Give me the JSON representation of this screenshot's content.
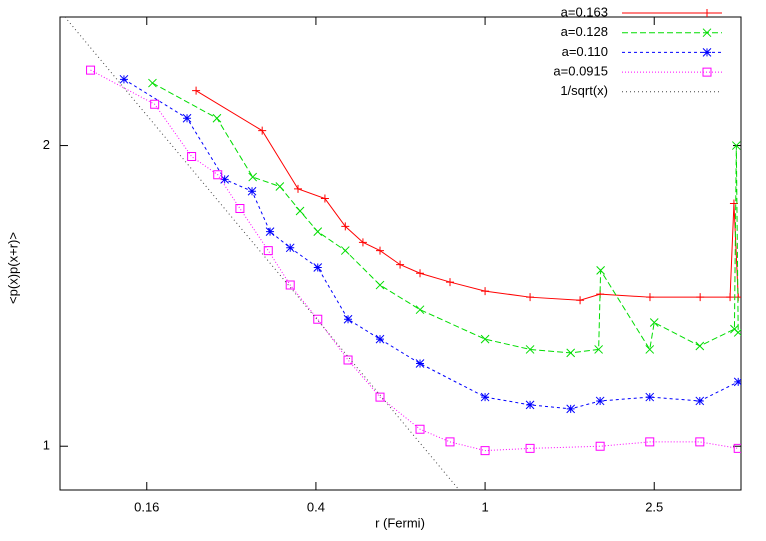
{
  "chart_data": {
    "type": "line",
    "x_label": "r (Fermi)",
    "y_label": "<p(x)p(x+r)>",
    "xlog": true,
    "ylog": true,
    "xlim": [
      0.1,
      4
    ],
    "ylim": [
      0.904,
      2.69
    ],
    "xticks": [
      0.16,
      0.4,
      1,
      2.5
    ],
    "yticks": [
      1,
      2
    ],
    "grid": false,
    "legend": "top-right",
    "series": [
      {
        "name": "a=0.163",
        "color": "#ff0000",
        "marker": "plus",
        "dash": "none",
        "x": [
          0.209,
          0.299,
          0.363,
          0.42,
          0.469,
          0.516,
          0.566,
          0.631,
          0.703,
          0.827,
          1.0,
          1.276,
          1.673,
          1.865,
          2.443,
          3.206,
          3.77,
          3.85,
          3.94
        ],
        "values": [
          2.27,
          2.07,
          1.81,
          1.77,
          1.66,
          1.6,
          1.57,
          1.52,
          1.49,
          1.46,
          1.43,
          1.41,
          1.4,
          1.42,
          1.41,
          1.41,
          1.41,
          1.75,
          1.41
        ]
      },
      {
        "name": "a=0.128",
        "color": "#00dd00",
        "marker": "cross",
        "dash": "6,3",
        "x": [
          0.165,
          0.234,
          0.284,
          0.329,
          0.367,
          0.404,
          0.469,
          0.566,
          0.703,
          1.0,
          1.276,
          1.59,
          1.85,
          1.87,
          2.44,
          2.5,
          3.2,
          3.86,
          3.9,
          3.94
        ],
        "values": [
          2.31,
          2.13,
          1.86,
          1.82,
          1.72,
          1.64,
          1.57,
          1.45,
          1.37,
          1.28,
          1.25,
          1.24,
          1.25,
          1.5,
          1.25,
          1.33,
          1.26,
          1.31,
          2.0,
          1.3
        ]
      },
      {
        "name": "a=0.110",
        "color": "#0000ff",
        "marker": "star",
        "dash": "3,3",
        "x": [
          0.1414,
          0.199,
          0.244,
          0.283,
          0.312,
          0.348,
          0.404,
          0.476,
          0.566,
          0.703,
          1.0,
          1.276,
          1.59,
          1.865,
          2.44,
          3.2,
          3.94
        ],
        "values": [
          2.33,
          2.13,
          1.85,
          1.8,
          1.64,
          1.58,
          1.51,
          1.34,
          1.28,
          1.21,
          1.12,
          1.1,
          1.09,
          1.11,
          1.12,
          1.11,
          1.16
        ]
      },
      {
        "name": "a=0.0915",
        "color": "#ff00ff",
        "marker": "square",
        "dash": "1,2",
        "x": [
          0.118,
          0.167,
          0.204,
          0.235,
          0.265,
          0.309,
          0.348,
          0.404,
          0.476,
          0.566,
          0.703,
          0.827,
          1.0,
          1.276,
          1.865,
          2.44,
          3.2,
          3.94
        ],
        "values": [
          2.38,
          2.2,
          1.95,
          1.87,
          1.73,
          1.57,
          1.45,
          1.34,
          1.22,
          1.12,
          1.04,
          1.01,
          0.99,
          0.995,
          1.0,
          1.01,
          1.01,
          0.995
        ]
      },
      {
        "name": "1/sqrt(x)",
        "color": "#444444",
        "marker": "none",
        "dash": "1,3",
        "x": [
          0.1027,
          0.869
        ],
        "values": [
          2.69,
          0.904
        ]
      }
    ]
  }
}
